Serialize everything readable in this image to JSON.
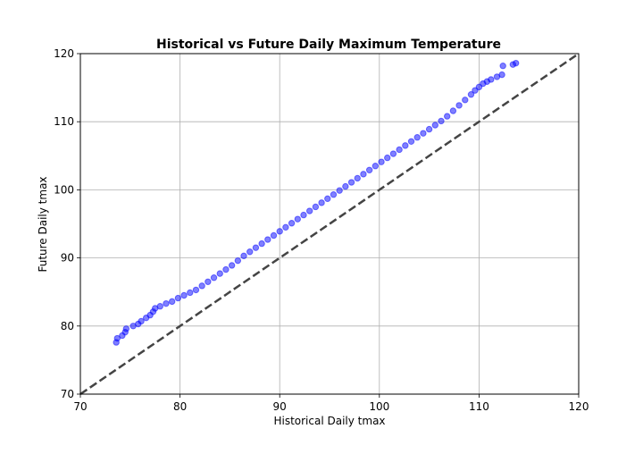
{
  "chart_data": {
    "type": "scatter",
    "title": "Historical vs Future Daily Maximum Temperature",
    "xlabel": "Historical Daily tmax",
    "ylabel": "Future Daily tmax",
    "xlim": [
      70,
      120
    ],
    "ylim": [
      70,
      120
    ],
    "xticks": [
      "70",
      "80",
      "90",
      "100",
      "110",
      "120"
    ],
    "yticks": [
      "70",
      "80",
      "90",
      "100",
      "110",
      "120"
    ],
    "grid": true,
    "series": [
      {
        "kind": "scatter",
        "color": "#0000ff",
        "alpha": 0.5,
        "points": [
          [
            73.6,
            77.6
          ],
          [
            73.7,
            78.2
          ],
          [
            74.2,
            78.6
          ],
          [
            74.5,
            79.1
          ],
          [
            74.6,
            79.6
          ],
          [
            75.3,
            80.0
          ],
          [
            75.8,
            80.3
          ],
          [
            76.1,
            80.7
          ],
          [
            76.6,
            81.2
          ],
          [
            77.0,
            81.6
          ],
          [
            77.3,
            82.1
          ],
          [
            77.5,
            82.6
          ],
          [
            78.0,
            82.9
          ],
          [
            78.6,
            83.3
          ],
          [
            79.2,
            83.6
          ],
          [
            79.8,
            84.1
          ],
          [
            80.4,
            84.5
          ],
          [
            81.0,
            84.9
          ],
          [
            81.6,
            85.3
          ],
          [
            82.2,
            85.9
          ],
          [
            82.8,
            86.5
          ],
          [
            83.4,
            87.1
          ],
          [
            84.0,
            87.7
          ],
          [
            84.6,
            88.3
          ],
          [
            85.2,
            88.9
          ],
          [
            85.8,
            89.6
          ],
          [
            86.4,
            90.3
          ],
          [
            87.0,
            90.9
          ],
          [
            87.6,
            91.5
          ],
          [
            88.2,
            92.1
          ],
          [
            88.8,
            92.7
          ],
          [
            89.4,
            93.3
          ],
          [
            90.0,
            93.9
          ],
          [
            90.6,
            94.5
          ],
          [
            91.2,
            95.1
          ],
          [
            91.8,
            95.7
          ],
          [
            92.4,
            96.3
          ],
          [
            93.0,
            96.9
          ],
          [
            93.6,
            97.5
          ],
          [
            94.2,
            98.1
          ],
          [
            94.8,
            98.7
          ],
          [
            95.4,
            99.3
          ],
          [
            96.0,
            99.9
          ],
          [
            96.6,
            100.5
          ],
          [
            97.2,
            101.1
          ],
          [
            97.8,
            101.7
          ],
          [
            98.4,
            102.3
          ],
          [
            99.0,
            102.9
          ],
          [
            99.6,
            103.5
          ],
          [
            100.2,
            104.1
          ],
          [
            100.8,
            104.7
          ],
          [
            101.4,
            105.3
          ],
          [
            102.0,
            105.9
          ],
          [
            102.6,
            106.5
          ],
          [
            103.2,
            107.1
          ],
          [
            103.8,
            107.7
          ],
          [
            104.4,
            108.3
          ],
          [
            105.0,
            108.9
          ],
          [
            105.6,
            109.5
          ],
          [
            106.2,
            110.1
          ],
          [
            106.8,
            110.8
          ],
          [
            107.4,
            111.6
          ],
          [
            108.0,
            112.4
          ],
          [
            108.6,
            113.2
          ],
          [
            109.2,
            114.0
          ],
          [
            109.6,
            114.6
          ],
          [
            110.0,
            115.1
          ],
          [
            110.4,
            115.6
          ],
          [
            110.8,
            115.9
          ],
          [
            111.2,
            116.2
          ],
          [
            111.8,
            116.6
          ],
          [
            112.3,
            116.9
          ],
          [
            112.4,
            118.2
          ],
          [
            113.4,
            118.4
          ],
          [
            113.7,
            118.6
          ]
        ]
      },
      {
        "kind": "line",
        "style": "dashed",
        "color": "#444444",
        "points": [
          [
            70,
            70
          ],
          [
            120,
            120
          ]
        ]
      }
    ]
  }
}
